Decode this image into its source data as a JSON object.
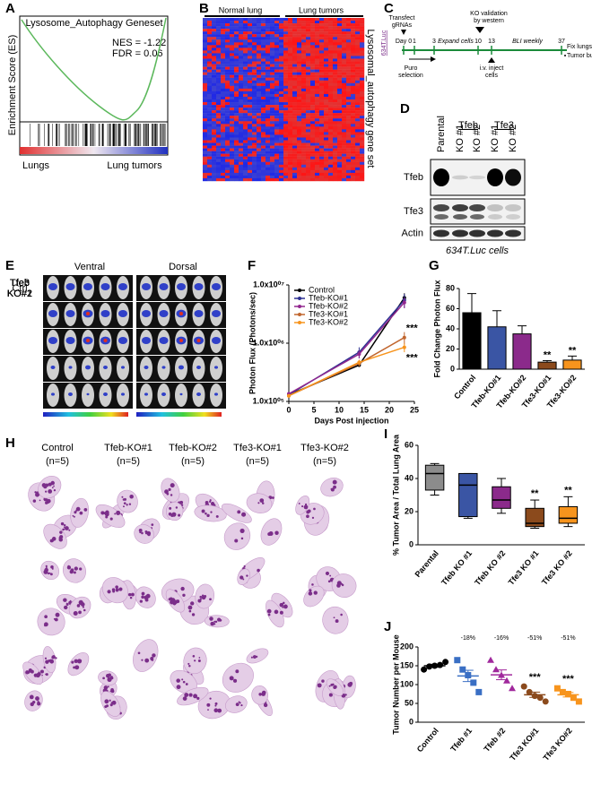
{
  "panels": {
    "a": {
      "label": "A",
      "title": "Lysosome_Autophagy Geneset",
      "nes": "NES = -1.22",
      "fdr": "FDR = 0.06",
      "ylabel": "Enrichment Score (ES)",
      "left": "Lungs",
      "right": "Lung tumors"
    },
    "b": {
      "label": "B",
      "left": "Normal lung",
      "right": "Lung tumors",
      "side": "Lysosomal_autophagy gene set"
    },
    "c": {
      "label": "C",
      "cell": "634T.Luc",
      "transfect": [
        "Transfect",
        "gRNAs"
      ],
      "days": [
        "Day 0",
        "1",
        "3",
        "10",
        "13",
        "37"
      ],
      "validation": [
        "KO validation",
        "by western"
      ],
      "expand": "Expand cells",
      "bli": "BLI weekly",
      "puro": [
        "Puro",
        "selection"
      ],
      "inject": [
        "i.v. inject",
        "cells"
      ],
      "fix": "Fix lungs",
      "burden": "Tumor burden"
    },
    "d": {
      "label": "D",
      "columns": [
        "Parental",
        "KO #1",
        "KO #2",
        "KO #1",
        "KO #2"
      ],
      "groups": [
        "Tfeb",
        "Tfe3"
      ],
      "rows": [
        "Tfeb",
        "Tfe3",
        "Actin"
      ],
      "caption": "634T.Luc cells"
    },
    "e": {
      "label": "E",
      "views": [
        "Ventral",
        "Dorsal"
      ],
      "rows": [
        [
          "Ctrl"
        ],
        [
          "Tfeb",
          "KO#1"
        ],
        [
          "Tfeb",
          "KO#2"
        ],
        [
          "Tfe3",
          "KO#1"
        ],
        [
          "Tfe3",
          "KO#2"
        ]
      ]
    },
    "h": {
      "label": "H",
      "columns": [
        [
          "Control",
          "(n=5)"
        ],
        [
          "Tfeb-KO#1",
          "(n=5)"
        ],
        [
          "Tfeb-KO#2",
          "(n=5)"
        ],
        [
          "Tfe3-KO#1",
          "(n=5)"
        ],
        [
          "Tfe3-KO#2",
          "(n=5)"
        ]
      ]
    }
  },
  "chart_data": [
    {
      "type": "line",
      "panel_label": "F",
      "ylabel": "Photon Flux (Photons/sec)",
      "xlabel": "Days Post injection",
      "x": [
        0,
        14,
        23
      ],
      "xlim": [
        0,
        25
      ],
      "xticks": [
        0,
        5,
        10,
        15,
        20,
        25
      ],
      "ylim": [
        100000,
        10000000
      ],
      "log_y": true,
      "yticks": [
        {
          "value": 100000,
          "label": "1.0x10⁰⁵"
        },
        {
          "value": 1000000,
          "label": "1.0x10⁰⁶"
        },
        {
          "value": 10000000,
          "label": "1.0x10⁰⁷"
        }
      ],
      "legend": "upper left",
      "series": [
        {
          "name": "Control",
          "color": "#000000",
          "values": [
            130000,
            420000,
            6000000
          ],
          "errors": [
            8000,
            30000,
            1200000
          ]
        },
        {
          "name": "Tfeb-KO#1",
          "color": "#2e3192",
          "values": [
            130000,
            700000,
            5500000
          ],
          "errors": [
            8000,
            150000,
            1500000
          ]
        },
        {
          "name": "Tfeb-KO#2",
          "color": "#92278f",
          "values": [
            135000,
            650000,
            5000000
          ],
          "errors": [
            8000,
            100000,
            1000000
          ]
        },
        {
          "name": "Tfe3-KO#1",
          "color": "#c1662e",
          "values": [
            125000,
            450000,
            1250000
          ],
          "errors": [
            8000,
            50000,
            300000
          ],
          "annotation": "***"
        },
        {
          "name": "Tfe3-KO#2",
          "color": "#f7941d",
          "values": [
            125000,
            470000,
            850000
          ],
          "errors": [
            8000,
            50000,
            150000
          ],
          "annotation": "***"
        }
      ]
    },
    {
      "type": "bar",
      "panel_label": "G",
      "ylabel": "Fold Change Photon Flux",
      "categories": [
        "Control",
        "Tfeb-KO#1",
        "Tfeb-KO#2",
        "Tfe3-KO#1",
        "Tfe3-KO#2"
      ],
      "values": [
        56,
        42,
        35,
        7,
        9
      ],
      "errors": [
        19,
        16,
        8,
        1.5,
        4
      ],
      "colors": [
        "#000000",
        "#3a55a4",
        "#8b2a8b",
        "#8b4a1c",
        "#f7941d"
      ],
      "annotations": [
        null,
        null,
        null,
        "**",
        "**"
      ],
      "ylim": [
        0,
        80
      ],
      "yticks": [
        0,
        20,
        40,
        60,
        80
      ]
    },
    {
      "type": "box",
      "panel_label": "I",
      "ylabel": "% Tumor Area / Total Lung Area",
      "categories": [
        "Parental",
        "Tfeb KO #1",
        "Tfeb KO #2",
        "Tfe3 KO #1",
        "Tfe3 KO #2"
      ],
      "min": [
        30,
        16,
        19,
        10,
        11
      ],
      "q1": [
        33,
        17,
        22,
        11,
        13
      ],
      "median": [
        43,
        36,
        27,
        13,
        16
      ],
      "q3": [
        48,
        43,
        35,
        22,
        23
      ],
      "max": [
        49,
        43,
        40,
        27,
        29
      ],
      "colors": [
        "#8c8c8c",
        "#3a55a4",
        "#8b2a8b",
        "#8b4a1c",
        "#f7941d"
      ],
      "annotations": [
        null,
        null,
        null,
        "**",
        "**"
      ],
      "ylim": [
        0,
        60
      ],
      "yticks": [
        0,
        20,
        40,
        60
      ]
    },
    {
      "type": "dot",
      "panel_label": "J",
      "ylabel": "Tumor Number per Mouse",
      "categories": [
        "Control",
        "Tfeb #1",
        "Tfeb #2",
        "Tfe3 KO#1",
        "Tfe3 KO#2"
      ],
      "points": [
        [
          140,
          148,
          150,
          152,
          160
        ],
        [
          165,
          140,
          125,
          105,
          80
        ],
        [
          165,
          140,
          125,
          110,
          90
        ],
        [
          95,
          80,
          70,
          65,
          55
        ],
        [
          90,
          80,
          75,
          65,
          55
        ]
      ],
      "means": [
        150,
        123,
        126,
        73,
        73
      ],
      "errors": [
        4,
        15,
        13,
        7,
        6
      ],
      "colors": [
        "#000000",
        "#3a6fc4",
        "#a0289c",
        "#8b4a1c",
        "#f7941d"
      ],
      "markers": [
        "circle",
        "square",
        "triangle",
        "circle",
        "square"
      ],
      "percent_labels": [
        null,
        "-18%",
        "-16%",
        "-51%",
        "-51%"
      ],
      "annotations": [
        null,
        null,
        null,
        "***",
        "***"
      ],
      "ylim": [
        0,
        200
      ],
      "yticks": [
        0,
        50,
        100,
        150,
        200
      ]
    }
  ]
}
